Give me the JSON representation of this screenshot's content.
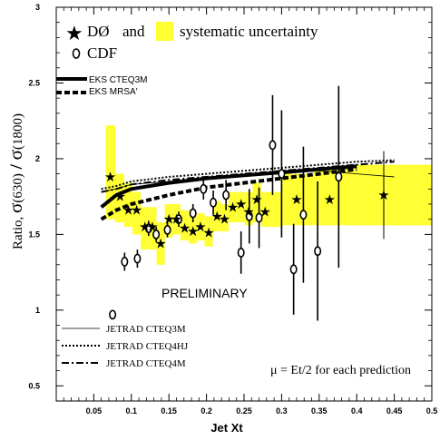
{
  "chart_data": {
    "type": "scatter",
    "title": "",
    "xlabel": "Jet Xt",
    "ylabel_parts": [
      "Ratio, ",
      "σ",
      "(630)",
      " / ",
      "σ",
      "(1800)"
    ],
    "xlim": [
      0.0,
      0.5
    ],
    "ylim": [
      0.4,
      3.0
    ],
    "x_ticks": [
      0.05,
      0.1,
      0.15,
      0.2,
      0.25,
      0.3,
      0.35,
      0.4,
      0.45,
      0.5
    ],
    "x_tick_labels": [
      "0.05",
      "0.1",
      "0.15",
      "0.2",
      "0.25",
      "0.3",
      "0.35",
      "0.4",
      "0.45",
      "0.5"
    ],
    "y_ticks": [
      0.5,
      1.0,
      1.5,
      2.0,
      2.5,
      3.0
    ],
    "y_tick_labels": [
      "0.5",
      "1",
      "1.5",
      "2",
      "2.5",
      "3"
    ],
    "legend": {
      "d0_label": "DØ",
      "and_text": "and",
      "syst_label": "systematic uncertainty",
      "cdf_label": "CDF",
      "eks_cteq3m": "EKS CTEQ3M",
      "eks_mrsa": "EKS MRSA′",
      "jetrad_cteq3m": "JETRAD CTEQ3M",
      "jetrad_cteq4hj": "JETRAD CTEQ4HJ",
      "jetrad_cteq4m": "JETRAD CTEQ4M"
    },
    "annotations": {
      "preliminary": "PRELIMINARY",
      "mu_note": "μ = Et/2 for each prediction"
    },
    "syst_color": "#ffff33",
    "d0": {
      "x": [
        0.072,
        0.085,
        0.096,
        0.107,
        0.118,
        0.128,
        0.139,
        0.15,
        0.16,
        0.171,
        0.182,
        0.192,
        0.203,
        0.214,
        0.224,
        0.235,
        0.246,
        0.256,
        0.267,
        0.278,
        0.32,
        0.364,
        0.436
      ],
      "y": [
        1.88,
        1.75,
        1.66,
        1.66,
        1.55,
        1.55,
        1.44,
        1.6,
        1.6,
        1.54,
        1.52,
        1.55,
        1.51,
        1.62,
        1.6,
        1.68,
        1.7,
        1.65,
        1.73,
        1.65,
        1.73,
        1.73,
        1.76
      ],
      "err": [
        0,
        0,
        0,
        0,
        0,
        0,
        0,
        0,
        0,
        0,
        0,
        0,
        0,
        0,
        0,
        0,
        0,
        0,
        0,
        0,
        0,
        0,
        0.29
      ],
      "syst_lo": [
        1.6,
        1.58,
        1.55,
        1.5,
        1.4,
        1.4,
        1.3,
        1.48,
        1.5,
        1.46,
        1.44,
        1.46,
        1.42,
        1.52,
        1.52,
        1.58,
        1.58,
        1.56,
        1.58,
        1.55,
        1.56,
        1.56,
        1.56
      ],
      "syst_hi": [
        2.22,
        1.9,
        1.84,
        1.78,
        1.68,
        1.68,
        1.58,
        1.7,
        1.7,
        1.66,
        1.62,
        1.64,
        1.62,
        1.72,
        1.7,
        1.78,
        1.78,
        1.78,
        1.84,
        1.78,
        1.9,
        1.94,
        1.96
      ]
    },
    "cdf": {
      "x": [
        0.075,
        0.091,
        0.108,
        0.123,
        0.133,
        0.148,
        0.163,
        0.182,
        0.196,
        0.209,
        0.226,
        0.246,
        0.257,
        0.27,
        0.288,
        0.3,
        0.316,
        0.329,
        0.348,
        0.376
      ],
      "y": [
        0.97,
        1.32,
        1.34,
        1.54,
        1.5,
        1.53,
        1.6,
        1.64,
        1.8,
        1.71,
        1.76,
        1.38,
        1.62,
        1.61,
        2.09,
        1.9,
        1.27,
        1.63,
        1.39,
        1.88
      ],
      "err": [
        0.0,
        0.06,
        0.06,
        0.05,
        0.05,
        0.05,
        0.05,
        0.06,
        0.07,
        0.08,
        0.1,
        0.14,
        0.18,
        0.2,
        0.33,
        0.42,
        0.3,
        0.45,
        0.46,
        0.6
      ]
    },
    "theory": {
      "x": [
        0.06,
        0.08,
        0.1,
        0.15,
        0.2,
        0.25,
        0.3,
        0.35,
        0.4,
        0.45
      ],
      "eks_cteq3m": [
        1.68,
        1.76,
        1.8,
        1.84,
        1.87,
        1.89,
        1.91,
        1.93,
        1.95,
        null
      ],
      "eks_mrsa": [
        1.6,
        1.66,
        1.7,
        1.76,
        1.81,
        1.84,
        1.87,
        1.9,
        1.93,
        null
      ],
      "jetrad_cteq3m": [
        1.78,
        1.8,
        1.83,
        1.85,
        1.87,
        1.89,
        1.9,
        1.92,
        1.9,
        1.88
      ],
      "jetrad_cteq4hj": [
        1.8,
        1.82,
        1.85,
        1.88,
        1.9,
        1.92,
        1.94,
        1.96,
        1.98,
        1.99
      ],
      "jetrad_cteq4m": [
        1.78,
        1.8,
        1.83,
        1.86,
        1.88,
        1.9,
        1.92,
        1.94,
        1.96,
        1.98
      ]
    }
  }
}
